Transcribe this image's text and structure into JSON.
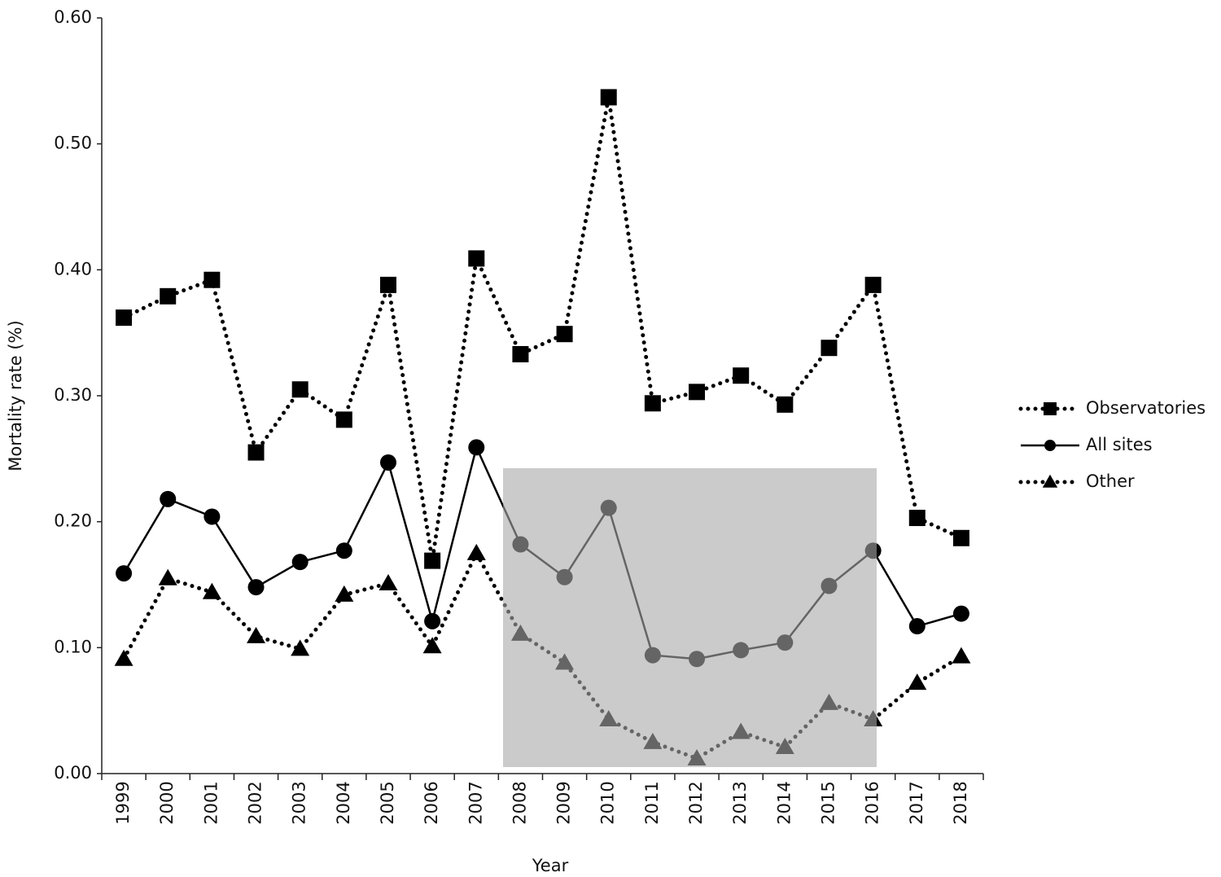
{
  "chart_data": {
    "type": "line",
    "x_label": "Year",
    "y_label": "Mortality rate (%)",
    "categories": [
      "1999",
      "2000",
      "2001",
      "2002",
      "2003",
      "2004",
      "2005",
      "2006",
      "2007",
      "2008",
      "2009",
      "2010",
      "2011",
      "2012",
      "2013",
      "2014",
      "2015",
      "2016",
      "2017",
      "2018"
    ],
    "series": [
      {
        "name": "Observatories",
        "color": "#000000",
        "line_style": "dotted",
        "marker": "square",
        "values": [
          0.362,
          0.379,
          0.392,
          0.255,
          0.305,
          0.281,
          0.388,
          0.169,
          0.409,
          0.333,
          0.349,
          0.537,
          0.294,
          0.303,
          0.316,
          0.293,
          0.338,
          0.388,
          0.203,
          0.187
        ]
      },
      {
        "name": "All sites",
        "color": "#000000",
        "line_style": "solid",
        "marker": "circle",
        "values": [
          0.159,
          0.218,
          0.204,
          0.148,
          0.168,
          0.177,
          0.247,
          0.121,
          0.259,
          0.182,
          0.156,
          0.211,
          0.094,
          0.091,
          0.098,
          0.104,
          0.149,
          0.177,
          0.117,
          0.127
        ]
      },
      {
        "name": "Other",
        "color": "#000000",
        "line_style": "dotted",
        "marker": "triangle",
        "values": [
          0.091,
          0.155,
          0.144,
          0.109,
          0.099,
          0.142,
          0.151,
          0.101,
          0.175,
          0.111,
          0.088,
          0.043,
          0.025,
          0.012,
          0.033,
          0.021,
          0.056,
          0.043,
          0.072,
          0.093
        ]
      }
    ],
    "ylim": [
      0,
      0.6
    ],
    "yticks": [
      {
        "value": 0,
        "label": "0.00"
      },
      {
        "value": 0.1,
        "label": "0.10"
      },
      {
        "value": 0.2,
        "label": "0.20"
      },
      {
        "value": 0.3,
        "label": "0.30"
      },
      {
        "value": 0.4,
        "label": "0.40"
      },
      {
        "value": 0.5,
        "label": "0.50"
      },
      {
        "value": 0.6,
        "label": "0.60"
      }
    ],
    "grid": false,
    "legend": "right"
  }
}
